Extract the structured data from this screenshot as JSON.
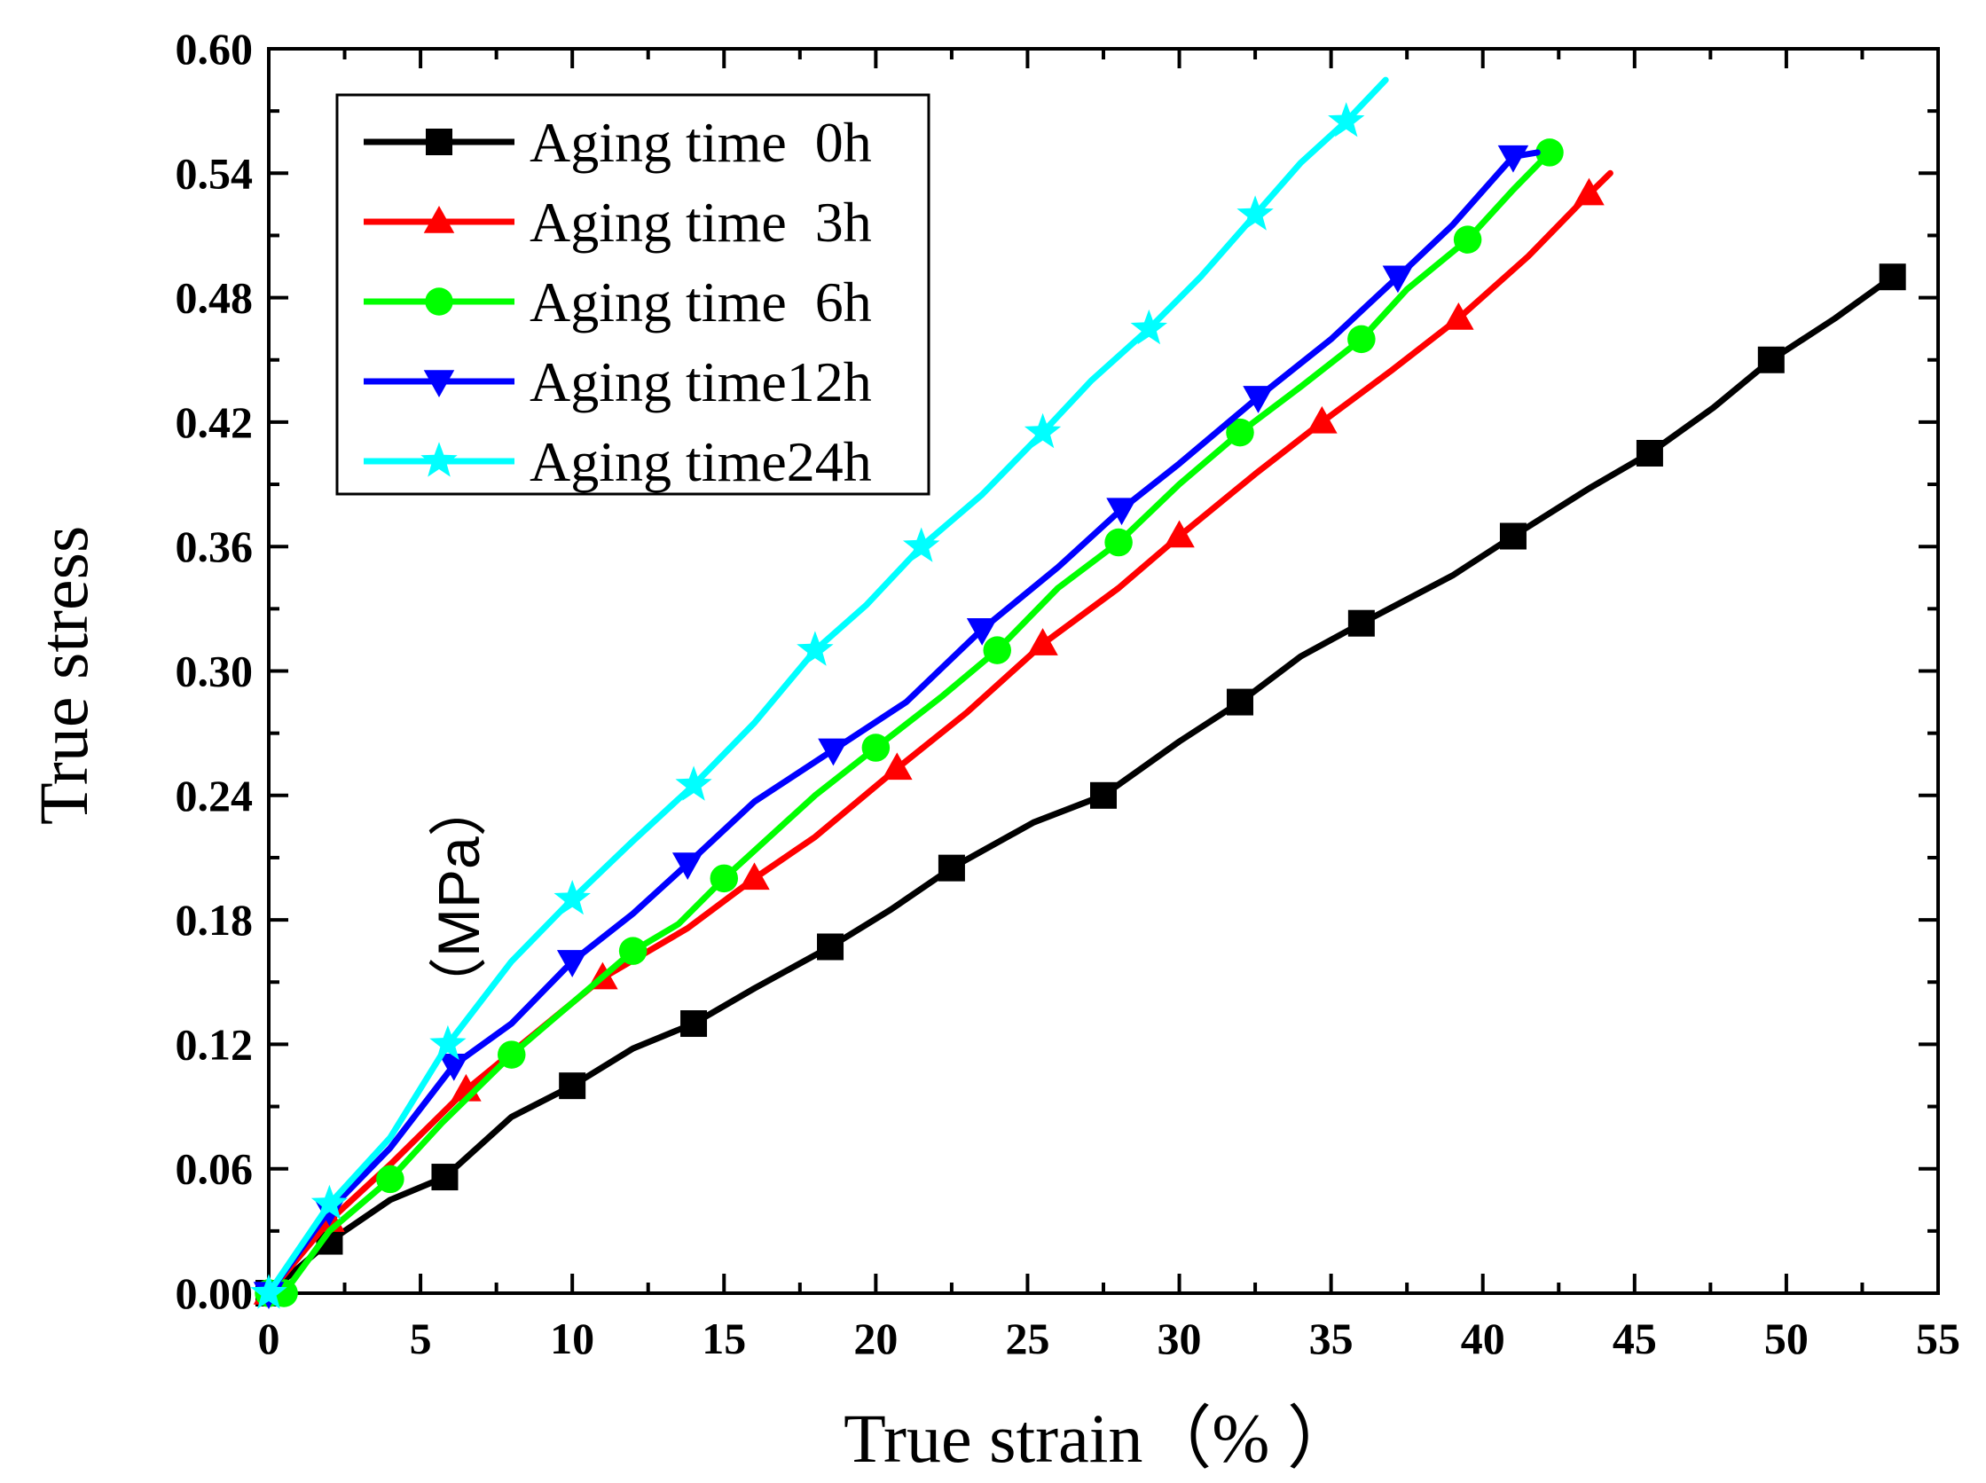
{
  "chart_data": {
    "type": "line",
    "title": "",
    "xlabel": "True strain（%  ）",
    "ylabel": "True stress",
    "ylabel_unit": "（MPa）",
    "xlim": [
      0,
      55
    ],
    "ylim": [
      0,
      0.6
    ],
    "x_ticks": [
      "0",
      "5",
      "10",
      "15",
      "20",
      "25",
      "30",
      "35",
      "40",
      "45",
      "50",
      "55"
    ],
    "y_ticks": [
      "0.00",
      "0.06",
      "0.12",
      "0.18",
      "0.24",
      "0.30",
      "0.36",
      "0.42",
      "0.48",
      "0.54",
      "0.60"
    ],
    "legend_position": "top-left",
    "series": [
      {
        "name": "Aging time  0h",
        "color": "#000000",
        "marker": "square",
        "x": [
          0,
          2,
          4,
          5.8,
          8,
          10,
          12,
          14,
          16,
          18.5,
          20.5,
          22.5,
          25.2,
          27.5,
          30,
          32,
          34,
          36,
          39,
          41,
          43.5,
          45.5,
          47.6,
          49.5,
          51.6,
          53.5
        ],
        "y": [
          0,
          0.025,
          0.045,
          0.056,
          0.085,
          0.1,
          0.118,
          0.13,
          0.147,
          0.167,
          0.185,
          0.205,
          0.227,
          0.24,
          0.266,
          0.285,
          0.307,
          0.323,
          0.346,
          0.365,
          0.388,
          0.405,
          0.427,
          0.45,
          0.47,
          0.49
        ]
      },
      {
        "name": "Aging time  3h",
        "color": "#ff0000",
        "marker": "triangle-up",
        "x": [
          0,
          2,
          4,
          6.5,
          9,
          11,
          13.8,
          16,
          18,
          20.7,
          23,
          25.5,
          28,
          30,
          32.5,
          34.7,
          37,
          39.2,
          41.5,
          43.5,
          44.2
        ],
        "y": [
          0,
          0.035,
          0.062,
          0.098,
          0.128,
          0.152,
          0.176,
          0.2,
          0.22,
          0.253,
          0.28,
          0.313,
          0.34,
          0.365,
          0.395,
          0.42,
          0.445,
          0.47,
          0.5,
          0.53,
          0.54
        ]
      },
      {
        "name": "Aging time  6h",
        "color": "#00ff00",
        "marker": "circle",
        "x": [
          0,
          0.5,
          2,
          4,
          5.7,
          8,
          10,
          12,
          13.5,
          15,
          18,
          20,
          22.2,
          24,
          26,
          28,
          30,
          32,
          34,
          36,
          37.5,
          39.5,
          41,
          42.2
        ],
        "y": [
          0,
          0,
          0.03,
          0.055,
          0.082,
          0.115,
          0.14,
          0.165,
          0.178,
          0.2,
          0.24,
          0.263,
          0.288,
          0.31,
          0.34,
          0.362,
          0.39,
          0.415,
          0.437,
          0.46,
          0.484,
          0.508,
          0.532,
          0.55
        ]
      },
      {
        "name": "Aging time12h",
        "color": "#0000ff",
        "marker": "triangle-down",
        "x": [
          0,
          2,
          4,
          6.1,
          8,
          10,
          12,
          13.8,
          16,
          18.6,
          21,
          23.5,
          26,
          28.1,
          30,
          32.6,
          35,
          37.2,
          39,
          41,
          41.8
        ],
        "y": [
          0,
          0.04,
          0.07,
          0.11,
          0.13,
          0.16,
          0.183,
          0.207,
          0.237,
          0.262,
          0.285,
          0.32,
          0.35,
          0.378,
          0.4,
          0.432,
          0.46,
          0.49,
          0.515,
          0.548,
          0.55
        ]
      },
      {
        "name": "Aging time24h",
        "color": "#00ffff",
        "marker": "star",
        "x": [
          0,
          2,
          4,
          5.9,
          8,
          10,
          12,
          14,
          16,
          18,
          19.7,
          21.5,
          23.5,
          25.5,
          27.1,
          29,
          30.7,
          32.5,
          34,
          35.5,
          36.8
        ],
        "y": [
          0,
          0.043,
          0.075,
          0.12,
          0.16,
          0.19,
          0.218,
          0.245,
          0.275,
          0.31,
          0.332,
          0.36,
          0.385,
          0.415,
          0.44,
          0.465,
          0.49,
          0.52,
          0.545,
          0.565,
          0.585
        ]
      }
    ]
  }
}
